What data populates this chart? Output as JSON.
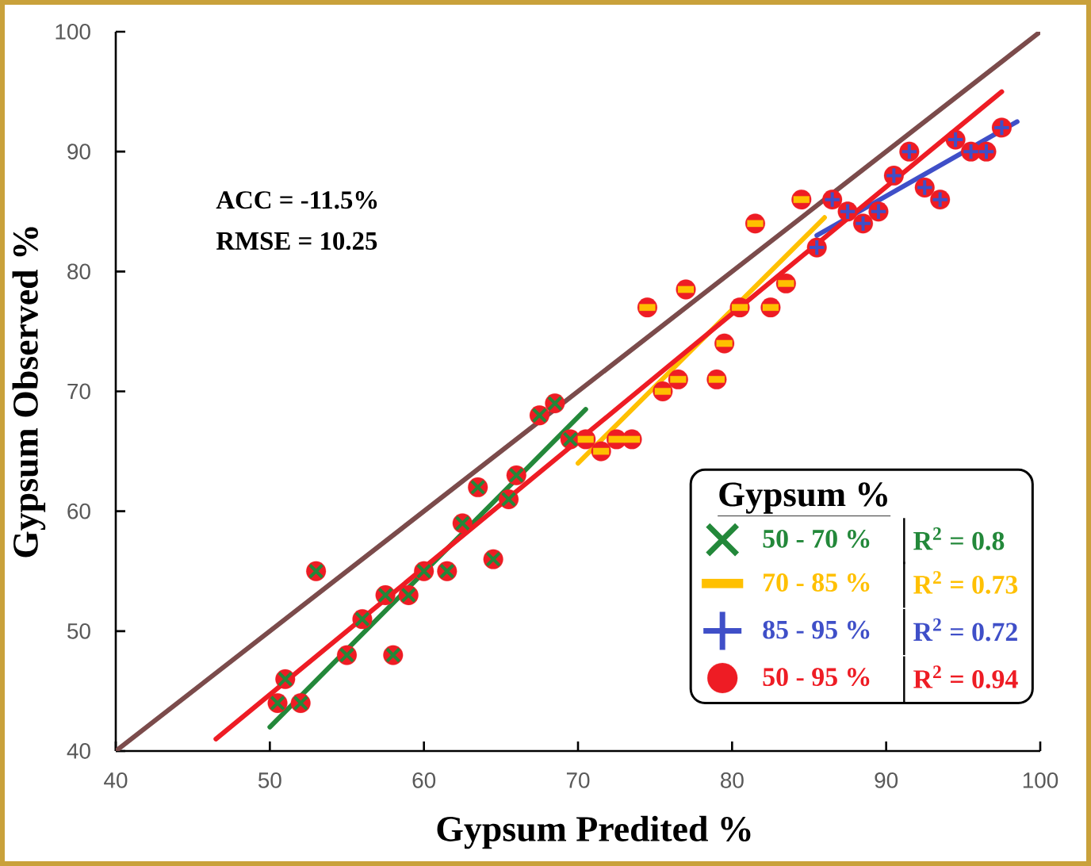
{
  "chart_data": {
    "type": "scatter",
    "xlabel": "Gypsum Predited %",
    "ylabel": "Gypsum Observed %",
    "legend_title": "Gypsum %",
    "xlim": [
      40,
      100
    ],
    "ylim": [
      40,
      100
    ],
    "xticks": [
      40,
      50,
      60,
      70,
      80,
      90,
      100
    ],
    "yticks": [
      40,
      50,
      60,
      70,
      80,
      90,
      100
    ],
    "legend": "bottom right",
    "annotations": [
      "ACC = -11.5%",
      "RMSE = 10.25",
      "R$^{2}$ = 0.8",
      "R$^{2}$ = 0.73",
      "R$^{2}$ = 0.72",
      "R$^{2}$ = 0.94"
    ],
    "series": [
      {
        "name": "50 - 70 %",
        "marker": "cross",
        "color": "#23883a",
        "x": [
          50.5,
          51,
          52,
          53,
          55,
          56,
          57.5,
          58,
          59,
          60,
          61.5,
          62.5,
          63.5,
          64.5,
          65.5,
          66,
          67.5,
          68.5,
          69.5
        ],
        "values": [
          44,
          46,
          44,
          55,
          48,
          51,
          53,
          48,
          53,
          55,
          55,
          59,
          62,
          56,
          61,
          63,
          68,
          69,
          66
        ]
      },
      {
        "name": "70 - 85 %",
        "color": "#ffc000",
        "x": [
          70.5,
          71.5,
          72.5,
          73.5,
          74.5,
          75.5,
          76.5,
          77,
          79,
          79.5,
          80.5,
          81.5,
          82.5,
          83.5,
          84.5
        ],
        "values": [
          66,
          65,
          66,
          66,
          77,
          70,
          71,
          78.5,
          71,
          74,
          77,
          84,
          77,
          79,
          86
        ]
      },
      {
        "name": "85 - 95 %",
        "marker": "plus",
        "color": "#3f4fc8",
        "x": [
          85.5,
          86.5,
          87.5,
          88.5,
          89.5,
          90.5,
          91.5,
          92.5,
          93.5,
          94.5,
          95.5,
          96.5,
          97.5
        ],
        "values": [
          82,
          86,
          85,
          84,
          85,
          88,
          90,
          87,
          86,
          91,
          90,
          90,
          92
        ]
      },
      {
        "name": "50 - 95 %",
        "marker": "circle",
        "color": "#ee1c24",
        "x": [
          50.5,
          51,
          52,
          53,
          55,
          56,
          57.5,
          58,
          59,
          60,
          61.5,
          62.5,
          63.5,
          64.5,
          65.5,
          66,
          67.5,
          68.5,
          69.5,
          70.5,
          71.5,
          72.5,
          73.5,
          74.5,
          75.5,
          76.5,
          77,
          79,
          79.5,
          80.5,
          81.5,
          82.5,
          83.5,
          84.5,
          85.5,
          86.5,
          87.5,
          88.5,
          89.5,
          90.5,
          91.5,
          92.5,
          93.5,
          94.5,
          95.5,
          96.5,
          97.5
        ],
        "values": [
          44,
          46,
          44,
          55,
          48,
          51,
          53,
          48,
          53,
          55,
          55,
          59,
          62,
          56,
          61,
          63,
          68,
          69,
          66,
          66,
          65,
          66,
          66,
          77,
          70,
          71,
          78.5,
          71,
          74,
          77,
          84,
          77,
          79,
          86,
          82,
          86,
          85,
          84,
          85,
          88,
          90,
          87,
          86,
          91,
          90,
          90,
          92
        ]
      },
      {
        "type": "line",
        "color": "#23883a",
        "x": [
          50,
          70.5
        ],
        "values": [
          42,
          68.5
        ]
      },
      {
        "type": "line",
        "color": "#ffc000",
        "x": [
          70,
          86
        ],
        "values": [
          64,
          84.5
        ]
      },
      {
        "type": "line",
        "color": "#3f4fc8",
        "x": [
          85.5,
          98.5
        ],
        "values": [
          83,
          92.5
        ]
      },
      {
        "type": "line",
        "color": "#ee1c24",
        "x": [
          46.5,
          97.5
        ],
        "values": [
          41,
          95
        ]
      },
      {
        "type": "line",
        "color": "#7b4b4b",
        "x": [
          40,
          100
        ],
        "values": [
          40,
          100
        ]
      }
    ]
  }
}
